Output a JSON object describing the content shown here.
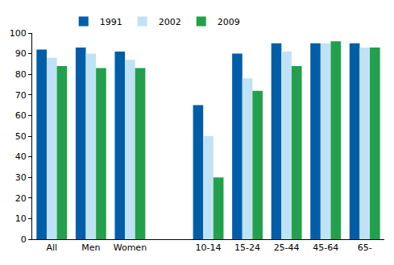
{
  "chart_data": {
    "type": "bar",
    "categories": [
      "All",
      "Men",
      "Women",
      null,
      "10-14",
      "15-24",
      "25-44",
      "45-64",
      "65-"
    ],
    "series": [
      {
        "name": "1991",
        "color": "#005ea8",
        "values": [
          92,
          93,
          91,
          null,
          65,
          90,
          95,
          95,
          95
        ]
      },
      {
        "name": "2002",
        "color": "#bfe3f5",
        "values": [
          88,
          90,
          87,
          null,
          50,
          78,
          91,
          95,
          93
        ]
      },
      {
        "name": "2009",
        "color": "#23a04c",
        "values": [
          84,
          83,
          83,
          null,
          30,
          72,
          84,
          96,
          93
        ]
      }
    ],
    "ylim": [
      0,
      100
    ],
    "yticks": [
      0,
      10,
      20,
      30,
      40,
      50,
      60,
      70,
      80,
      90,
      100
    ],
    "grid": false,
    "legend": "top"
  }
}
